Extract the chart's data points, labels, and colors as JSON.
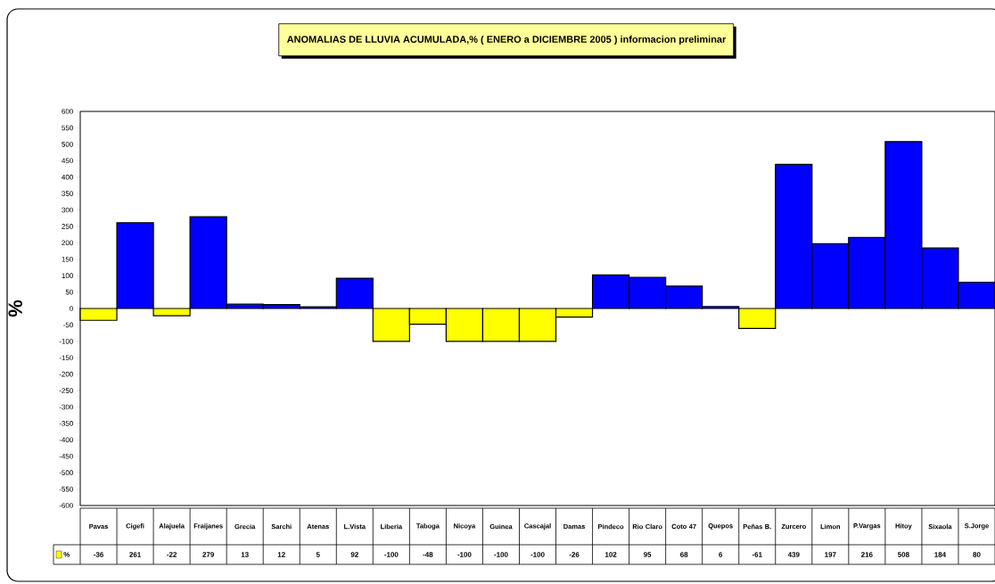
{
  "chart_data": {
    "type": "bar",
    "title": "ANOMALIAS DE LLUVIA ACUMULADA,% ( ENERO a DICIEMBRE 2005 ) informacion preliminar",
    "ylabel": "%",
    "categories": [
      "Pavas",
      "Cigefi",
      "Alajuela",
      "Fraijanes",
      "Grecia",
      "Sarchi",
      "Atenas",
      "L.Vista",
      "Liberia",
      "Taboga",
      "Nicoya",
      "Guinea",
      "Cascajal",
      "Damas",
      "Pindeco",
      "Rio Claro",
      "Coto 47",
      "Quepos",
      "Peñas B.",
      "Zurcero",
      "Limon",
      "P.Vargas",
      "Hitoy",
      "Sixaola",
      "S.Jorge"
    ],
    "series": [
      {
        "name": "%",
        "color": "#ffff00",
        "values": [
          -36,
          261,
          -22,
          279,
          13,
          12,
          5,
          92,
          -100,
          -48,
          -100,
          -100,
          -100,
          -26,
          102,
          95,
          68,
          6,
          -61,
          439,
          197,
          216,
          508,
          184,
          80
        ],
        "colors": [
          "#ffff00",
          "#0000ff",
          "#ffff00",
          "#0000ff",
          "#0000ff",
          "#0000ff",
          "#0000ff",
          "#0000ff",
          "#ffff00",
          "#ffff00",
          "#ffff00",
          "#ffff00",
          "#ffff00",
          "#ffff00",
          "#0000ff",
          "#0000ff",
          "#0000ff",
          "#0000ff",
          "#ffff00",
          "#0000ff",
          "#0000ff",
          "#0000ff",
          "#0000ff",
          "#0000ff",
          "#0000ff"
        ]
      }
    ],
    "ylim": [
      -600,
      600
    ],
    "yticks": [
      -600,
      -550,
      -500,
      -450,
      -400,
      -350,
      -300,
      -250,
      -200,
      -150,
      -100,
      -50,
      0,
      50,
      100,
      150,
      200,
      250,
      300,
      350,
      400,
      450,
      500,
      550,
      600
    ],
    "data_labels": true,
    "legend": "bottom left",
    "grid": false
  }
}
